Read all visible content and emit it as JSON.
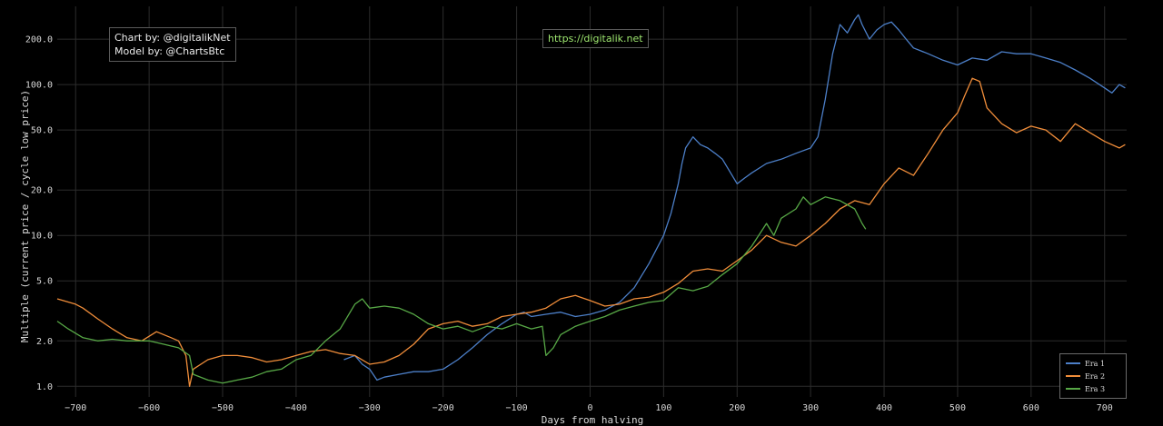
{
  "credits": {
    "chart_by": "Chart by: @digitalikNet",
    "model_by": "Model by: @ChartsBtc"
  },
  "url": "https://digitalik.net",
  "chart_data": {
    "type": "line",
    "xlabel": "Days from halving",
    "ylabel": "Multiple (current price / cycle low price)",
    "xlim": [
      -725,
      730
    ],
    "ylim": [
      0.85,
      330
    ],
    "yscale": "log",
    "x_ticks": [
      -700,
      -600,
      -500,
      -400,
      -300,
      -200,
      -100,
      0,
      100,
      200,
      300,
      400,
      500,
      600,
      700
    ],
    "x_tick_labels": [
      "−700",
      "−600",
      "−500",
      "−400",
      "−300",
      "−200",
      "−100",
      "0",
      "100",
      "200",
      "300",
      "400",
      "500",
      "600",
      "700"
    ],
    "y_ticks": [
      1,
      2,
      5,
      10,
      20,
      50,
      100,
      200
    ],
    "y_tick_labels": [
      "1.0",
      "2.0",
      "5.0",
      "10.0",
      "20.0",
      "50.0",
      "100.0",
      "200.0"
    ],
    "grid": true,
    "legend_position": "bottom-right",
    "series": [
      {
        "name": "Era 1",
        "color": "#4c7fc8",
        "x": [
          -335,
          -320,
          -310,
          -300,
          -290,
          -280,
          -260,
          -240,
          -220,
          -200,
          -180,
          -160,
          -140,
          -120,
          -100,
          -90,
          -80,
          -60,
          -40,
          -20,
          0,
          20,
          40,
          60,
          80,
          100,
          110,
          120,
          125,
          130,
          140,
          150,
          160,
          170,
          180,
          200,
          210,
          220,
          240,
          260,
          280,
          300,
          310,
          320,
          330,
          340,
          350,
          360,
          365,
          370,
          380,
          390,
          400,
          410,
          420,
          430,
          440,
          460,
          480,
          500,
          520,
          540,
          560,
          580,
          600,
          620,
          640,
          660,
          680,
          700,
          710,
          720,
          728
        ],
        "values": [
          1.5,
          1.6,
          1.4,
          1.3,
          1.1,
          1.15,
          1.2,
          1.25,
          1.25,
          1.3,
          1.5,
          1.8,
          2.2,
          2.6,
          3.0,
          3.1,
          2.9,
          3.0,
          3.1,
          2.9,
          3.0,
          3.2,
          3.6,
          4.5,
          6.5,
          10,
          14,
          22,
          30,
          38,
          45,
          40,
          38,
          35,
          32,
          22,
          24,
          26,
          30,
          32,
          35,
          38,
          45,
          80,
          160,
          250,
          220,
          270,
          290,
          250,
          200,
          230,
          250,
          260,
          230,
          200,
          175,
          160,
          145,
          135,
          150,
          145,
          165,
          160,
          160,
          150,
          140,
          125,
          110,
          95,
          88,
          100,
          95
        ]
      },
      {
        "name": "Era 2",
        "color": "#f08d3a",
        "x": [
          -725,
          -700,
          -690,
          -670,
          -650,
          -630,
          -610,
          -590,
          -570,
          -560,
          -550,
          -545,
          -540,
          -520,
          -500,
          -480,
          -460,
          -440,
          -420,
          -400,
          -380,
          -360,
          -340,
          -320,
          -300,
          -280,
          -260,
          -240,
          -220,
          -200,
          -180,
          -160,
          -140,
          -120,
          -100,
          -80,
          -60,
          -40,
          -20,
          0,
          20,
          40,
          60,
          80,
          100,
          120,
          140,
          160,
          180,
          200,
          220,
          240,
          260,
          280,
          300,
          320,
          340,
          360,
          380,
          400,
          420,
          440,
          460,
          480,
          500,
          510,
          520,
          530,
          540,
          560,
          580,
          600,
          620,
          640,
          660,
          680,
          700,
          720,
          728
        ],
        "values": [
          3.8,
          3.5,
          3.3,
          2.8,
          2.4,
          2.1,
          2.0,
          2.3,
          2.1,
          2.0,
          1.6,
          1.0,
          1.3,
          1.5,
          1.6,
          1.6,
          1.55,
          1.45,
          1.5,
          1.6,
          1.7,
          1.75,
          1.65,
          1.6,
          1.4,
          1.45,
          1.6,
          1.9,
          2.4,
          2.6,
          2.7,
          2.5,
          2.6,
          2.9,
          3.0,
          3.1,
          3.3,
          3.8,
          4.0,
          3.7,
          3.4,
          3.5,
          3.8,
          3.9,
          4.2,
          4.8,
          5.8,
          6.0,
          5.8,
          6.8,
          8.0,
          10,
          9.0,
          8.5,
          10,
          12,
          15,
          17,
          16,
          22,
          28,
          25,
          35,
          50,
          65,
          85,
          110,
          105,
          70,
          55,
          48,
          53,
          50,
          42,
          55,
          48,
          42,
          38,
          40
        ]
      },
      {
        "name": "Era 3",
        "color": "#57a846",
        "x": [
          -725,
          -710,
          -690,
          -670,
          -650,
          -630,
          -600,
          -580,
          -560,
          -545,
          -540,
          -520,
          -500,
          -480,
          -460,
          -440,
          -420,
          -400,
          -380,
          -360,
          -340,
          -320,
          -310,
          -300,
          -280,
          -260,
          -240,
          -220,
          -200,
          -180,
          -160,
          -140,
          -120,
          -100,
          -80,
          -65,
          -60,
          -50,
          -40,
          -20,
          0,
          20,
          40,
          60,
          80,
          100,
          120,
          140,
          160,
          180,
          200,
          220,
          240,
          250,
          260,
          280,
          290,
          300,
          320,
          340,
          360,
          370,
          375
        ],
        "values": [
          2.7,
          2.4,
          2.1,
          2.0,
          2.05,
          2.0,
          2.0,
          1.9,
          1.8,
          1.6,
          1.2,
          1.1,
          1.05,
          1.1,
          1.15,
          1.25,
          1.3,
          1.5,
          1.6,
          2.0,
          2.4,
          3.5,
          3.8,
          3.3,
          3.4,
          3.3,
          3.0,
          2.6,
          2.4,
          2.5,
          2.3,
          2.5,
          2.4,
          2.6,
          2.4,
          2.5,
          1.6,
          1.8,
          2.2,
          2.5,
          2.7,
          2.9,
          3.2,
          3.4,
          3.6,
          3.7,
          4.5,
          4.3,
          4.6,
          5.5,
          6.5,
          8.5,
          12,
          10,
          13,
          15,
          18,
          16,
          18,
          17,
          15,
          12,
          11
        ]
      }
    ]
  }
}
